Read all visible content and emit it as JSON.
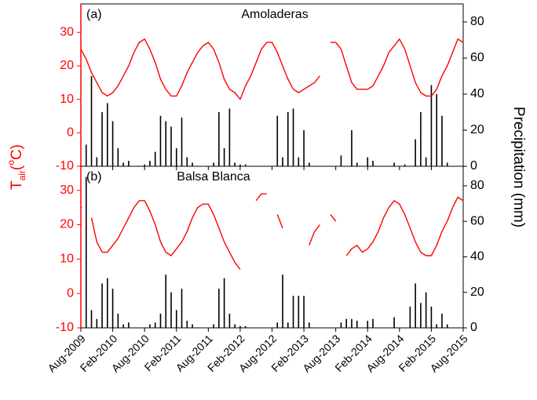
{
  "chart_data": [
    {
      "type": "line",
      "panel_label": "(a)",
      "title": "Amoladeras",
      "ylabel": [
        "T",
        "air",
        "(",
        "o",
        "C)"
      ],
      "y2label": "Precipitation (mm)",
      "x": [
        "2009-08",
        "2009-09",
        "2009-10",
        "2009-11",
        "2009-12",
        "2010-01",
        "2010-02",
        "2010-03",
        "2010-04",
        "2010-05",
        "2010-06",
        "2010-07",
        "2010-08",
        "2010-09",
        "2010-10",
        "2010-11",
        "2010-12",
        "2011-01",
        "2011-02",
        "2011-03",
        "2011-04",
        "2011-05",
        "2011-06",
        "2011-07",
        "2011-08",
        "2011-09",
        "2011-10",
        "2011-11",
        "2011-12",
        "2012-01",
        "2012-02",
        "2012-03",
        "2012-04",
        "2012-05",
        "2012-06",
        "2012-07",
        "2012-08",
        "2012-09",
        "2012-10",
        "2012-11",
        "2012-12",
        "2013-01",
        "2013-02",
        "2013-03",
        "2013-04",
        "2013-05",
        "2013-06",
        "2013-07",
        "2013-08",
        "2013-09",
        "2013-10",
        "2013-11",
        "2013-12",
        "2014-01",
        "2014-02",
        "2014-03",
        "2014-04",
        "2014-05",
        "2014-06",
        "2014-07",
        "2014-08",
        "2014-09",
        "2014-10",
        "2014-11",
        "2014-12",
        "2015-01",
        "2015-02",
        "2015-03",
        "2015-04",
        "2015-05",
        "2015-06",
        "2015-07",
        "2015-08"
      ],
      "series": [
        {
          "name": "Tair",
          "color": "#ff0000",
          "axis": "y",
          "values": [
            25,
            22,
            18,
            15,
            12,
            11,
            12,
            14,
            17,
            20,
            24,
            27,
            28,
            25,
            21,
            16,
            13,
            11,
            11,
            14,
            18,
            21,
            24,
            26,
            27,
            25,
            21,
            16,
            13,
            12,
            10,
            14,
            17,
            21,
            25,
            27,
            27,
            24,
            20,
            16,
            13,
            12,
            13,
            14,
            15,
            17,
            null,
            27,
            27,
            25,
            20,
            15,
            13,
            13,
            13,
            14,
            17,
            20,
            24,
            26,
            28,
            25,
            20,
            15,
            12,
            11,
            11,
            13,
            17,
            20,
            24,
            28,
            27
          ]
        },
        {
          "name": "Precipitation",
          "color": "#000000",
          "axis": "y2",
          "values": [
            0,
            12,
            50,
            5,
            30,
            35,
            25,
            10,
            2,
            3,
            0,
            0,
            1,
            3,
            8,
            28,
            25,
            22,
            10,
            27,
            5,
            2,
            0,
            0,
            0,
            2,
            30,
            10,
            32,
            2,
            1,
            1,
            0,
            0,
            0,
            0,
            0,
            28,
            5,
            30,
            32,
            5,
            20,
            2,
            0,
            0,
            0,
            0,
            0,
            6,
            0,
            20,
            2,
            0,
            5,
            3,
            0,
            0,
            0,
            2,
            0,
            1,
            0,
            15,
            30,
            5,
            45,
            40,
            28,
            2,
            0,
            0,
            0
          ]
        }
      ],
      "xlim": [
        "2009-08",
        "2015-08"
      ],
      "xticks": [
        "2009-08",
        "2010-02",
        "2010-08",
        "2011-02",
        "2011-08",
        "2012-02",
        "2012-08",
        "2013-02",
        "2013-08",
        "2014-02",
        "2014-08",
        "2015-02",
        "2015-08"
      ],
      "ylim": [
        -10,
        38.5
      ],
      "yticks": [
        -10,
        0,
        10,
        20,
        30
      ],
      "y2lim": [
        0,
        90
      ],
      "y2ticks": [
        0,
        20,
        40,
        60,
        80
      ]
    },
    {
      "type": "line",
      "panel_label": "(b)",
      "title": "Balsa Blanca",
      "x": [
        "2009-08",
        "2009-09",
        "2009-10",
        "2009-11",
        "2009-12",
        "2010-01",
        "2010-02",
        "2010-03",
        "2010-04",
        "2010-05",
        "2010-06",
        "2010-07",
        "2010-08",
        "2010-09",
        "2010-10",
        "2010-11",
        "2010-12",
        "2011-01",
        "2011-02",
        "2011-03",
        "2011-04",
        "2011-05",
        "2011-06",
        "2011-07",
        "2011-08",
        "2011-09",
        "2011-10",
        "2011-11",
        "2011-12",
        "2012-01",
        "2012-02",
        "2012-03",
        "2012-04",
        "2012-05",
        "2012-06",
        "2012-07",
        "2012-08",
        "2012-09",
        "2012-10",
        "2012-11",
        "2012-12",
        "2013-01",
        "2013-02",
        "2013-03",
        "2013-04",
        "2013-05",
        "2013-06",
        "2013-07",
        "2013-08",
        "2013-09",
        "2013-10",
        "2013-11",
        "2013-12",
        "2014-01",
        "2014-02",
        "2014-03",
        "2014-04",
        "2014-05",
        "2014-06",
        "2014-07",
        "2014-08",
        "2014-09",
        "2014-10",
        "2014-11",
        "2014-12",
        "2015-01",
        "2015-02",
        "2015-03",
        "2015-04",
        "2015-05",
        "2015-06",
        "2015-07",
        "2015-08"
      ],
      "series": [
        {
          "name": "Tair",
          "color": "#ff0000",
          "axis": "y",
          "values": [
            25,
            null,
            22,
            15,
            12,
            12,
            14,
            16,
            19,
            22,
            25,
            27,
            27,
            24,
            20,
            15,
            12,
            11,
            13,
            15,
            18,
            22,
            25,
            26,
            26,
            23,
            19,
            15,
            12,
            9,
            7,
            null,
            null,
            27,
            29,
            29,
            null,
            23,
            19,
            null,
            null,
            null,
            null,
            14,
            18,
            20,
            null,
            23,
            21,
            null,
            11,
            13,
            14,
            12,
            13,
            15,
            18,
            22,
            25,
            27,
            26,
            23,
            19,
            15,
            12,
            11,
            11,
            14,
            18,
            21,
            25,
            28,
            27
          ]
        },
        {
          "name": "Precipitation",
          "color": "#000000",
          "axis": "y2",
          "values": [
            0,
            85,
            10,
            5,
            25,
            28,
            22,
            8,
            2,
            3,
            0,
            0,
            0,
            2,
            3,
            8,
            30,
            20,
            10,
            22,
            4,
            2,
            0,
            0,
            0,
            2,
            22,
            28,
            8,
            2,
            1,
            1,
            0,
            0,
            0,
            0,
            0,
            3,
            30,
            3,
            18,
            18,
            18,
            3,
            0,
            0,
            0,
            0,
            0,
            3,
            5,
            5,
            4,
            0,
            4,
            5,
            0,
            0,
            0,
            6,
            0,
            0,
            12,
            25,
            14,
            20,
            12,
            2,
            8,
            2,
            0,
            0,
            0
          ]
        }
      ],
      "xlim": [
        "2009-08",
        "2015-08"
      ],
      "xticks": [
        {
          "value": "2009-08",
          "label": "Aug-2009"
        },
        {
          "value": "2010-02",
          "label": "Feb-2010"
        },
        {
          "value": "2010-08",
          "label": "Aug-2010"
        },
        {
          "value": "2011-02",
          "label": "Feb-2011"
        },
        {
          "value": "2011-08",
          "label": "Aug-2011"
        },
        {
          "value": "2012-02",
          "label": "Feb-2012"
        },
        {
          "value": "2012-08",
          "label": "Aug-2012"
        },
        {
          "value": "2013-02",
          "label": "Feb-2013"
        },
        {
          "value": "2013-08",
          "label": "Aug-2013"
        },
        {
          "value": "2014-02",
          "label": "Feb-2014"
        },
        {
          "value": "2014-08",
          "label": "Aug-2014"
        },
        {
          "value": "2015-02",
          "label": "Feb-2015"
        },
        {
          "value": "2015-08",
          "label": "Aug-2015"
        }
      ],
      "ylim": [
        -10,
        37
      ],
      "yticks": [
        -10,
        0,
        10,
        20,
        30
      ],
      "y2lim": [
        0,
        91
      ],
      "y2ticks": [
        0,
        20,
        40,
        60,
        80
      ]
    }
  ]
}
